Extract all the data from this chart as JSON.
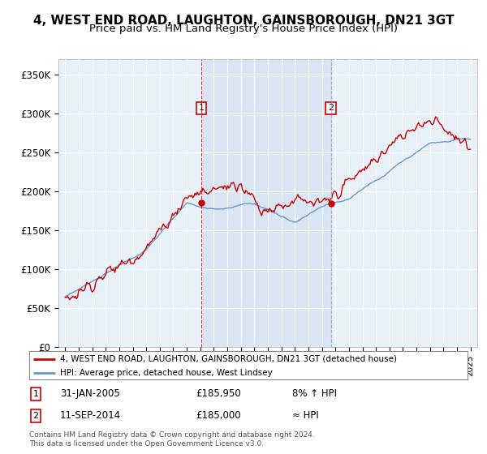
{
  "title": "4, WEST END ROAD, LAUGHTON, GAINSBOROUGH, DN21 3GT",
  "subtitle": "Price paid vs. HM Land Registry's House Price Index (HPI)",
  "title_fontsize": 11,
  "subtitle_fontsize": 9.5,
  "background_color": "#ffffff",
  "plot_bg_color": "#e8f0f8",
  "grid_color": "#ffffff",
  "shade_color": "#ccdcf0",
  "ylim": [
    0,
    370000
  ],
  "yticks": [
    0,
    50000,
    100000,
    150000,
    200000,
    250000,
    300000,
    350000
  ],
  "ytick_labels": [
    "£0",
    "£50K",
    "£100K",
    "£150K",
    "£200K",
    "£250K",
    "£300K",
    "£350K"
  ],
  "red_line_color": "#cc0000",
  "blue_line_color": "#6699cc",
  "legend_red": "4, WEST END ROAD, LAUGHTON, GAINSBOROUGH, DN21 3GT (detached house)",
  "legend_blue": "HPI: Average price, detached house, West Lindsey",
  "footer": "Contains HM Land Registry data © Crown copyright and database right 2024.\nThis data is licensed under the Open Government Licence v3.0.",
  "sale1_value": 185950,
  "sale2_value": 185000,
  "sale1_year": 2005.08,
  "sale2_year": 2014.67
}
